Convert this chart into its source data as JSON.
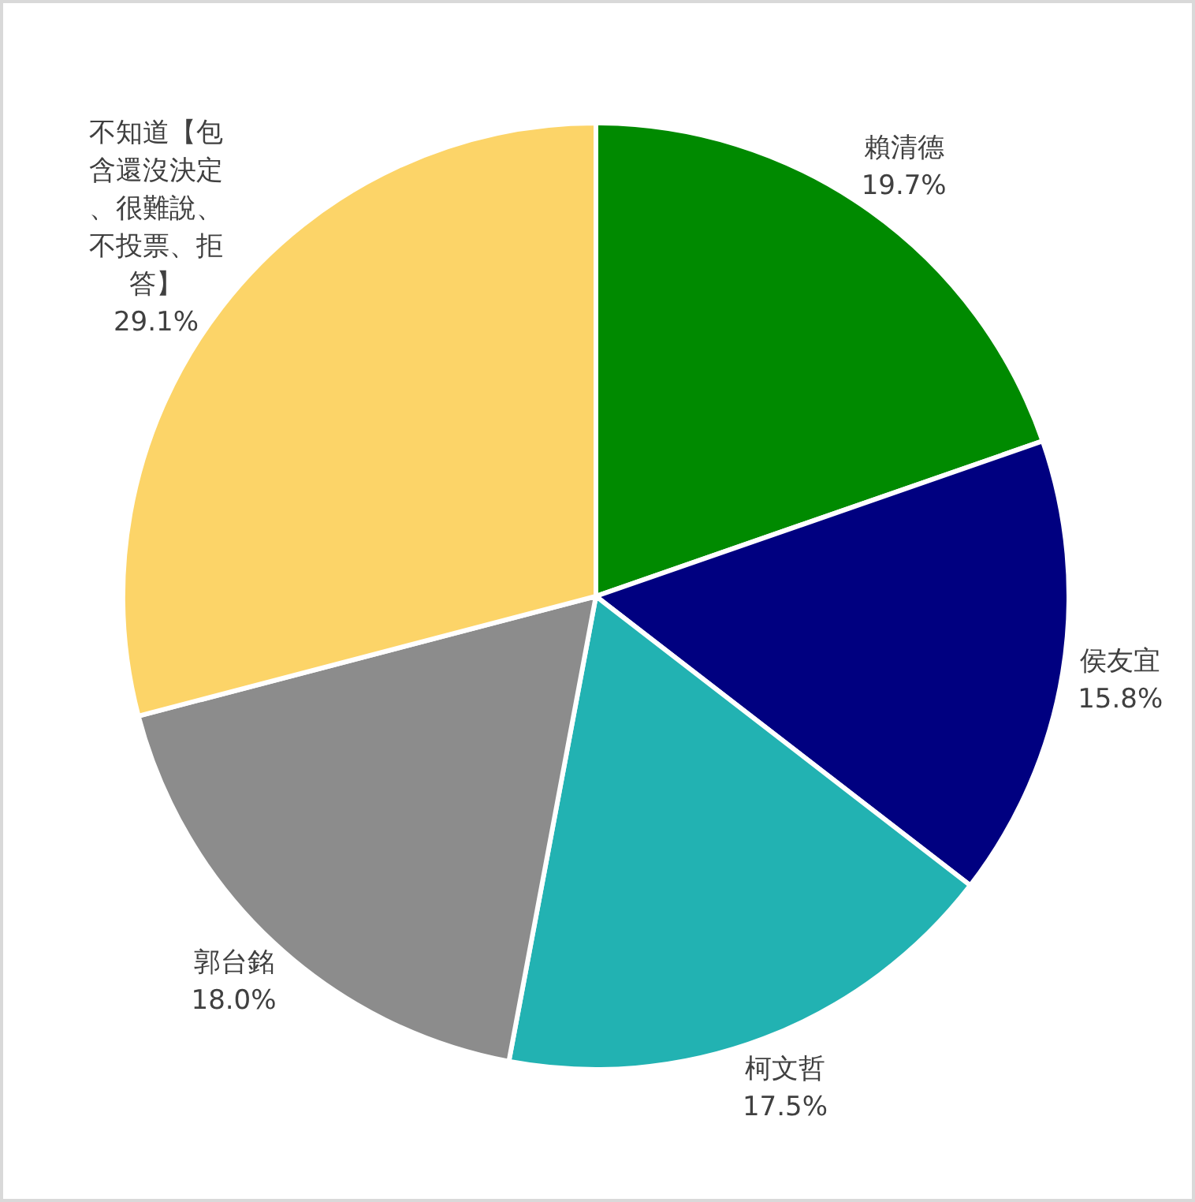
{
  "chart_data": {
    "type": "pie",
    "categories": [
      "賴清德",
      "侯友宜",
      "柯文哲",
      "郭台銘",
      "不知道【包含還沒決定、很難說、不投票、拒答】"
    ],
    "values": [
      19.7,
      15.8,
      17.5,
      18.0,
      29.1
    ],
    "value_labels": [
      "19.7%",
      "15.8%",
      "17.5%",
      "18.0%",
      "29.1%"
    ],
    "colors": [
      "#008a00",
      "#000080",
      "#22b2b2",
      "#8c8c8c",
      "#fcd468"
    ]
  }
}
